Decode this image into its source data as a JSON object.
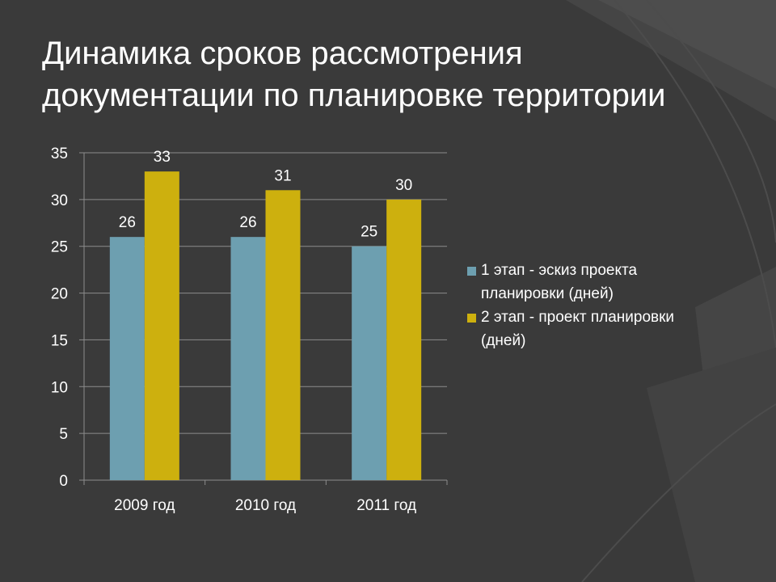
{
  "slide": {
    "title_lines": [
      "Динамика сроков рассмотрения",
      "документации по планировке территории"
    ],
    "background_color": "#3a3a3a"
  },
  "chart_data": {
    "type": "bar",
    "title": "",
    "xlabel": "",
    "ylabel": "",
    "categories": [
      "2009 год",
      "2010 год",
      "2011 год"
    ],
    "series": [
      {
        "name": "1 этап - эскиз проекта планировки (дней)",
        "values": [
          26,
          26,
          25
        ],
        "color": "#6d9fb0"
      },
      {
        "name": "2 этап - проект планировки (дней)",
        "values": [
          33,
          31,
          30
        ],
        "color": "#cdb00e"
      }
    ],
    "ylim": [
      0,
      35
    ],
    "yticks": [
      0,
      5,
      10,
      15,
      20,
      25,
      30,
      35
    ],
    "grid": true,
    "legend": "right",
    "data_labels": true
  }
}
